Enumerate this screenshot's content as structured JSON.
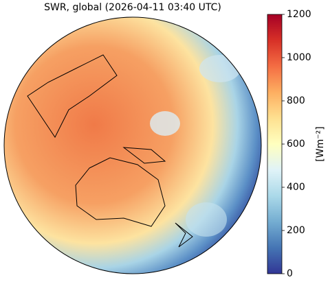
{
  "title": "SWR, global (2026-04-11 03:40 UTC)",
  "colorbar": {
    "label": "[Wm⁻²]",
    "range": [
      0,
      1200
    ],
    "ticks": [
      0,
      200,
      400,
      600,
      800,
      1000,
      1200
    ]
  }
}
